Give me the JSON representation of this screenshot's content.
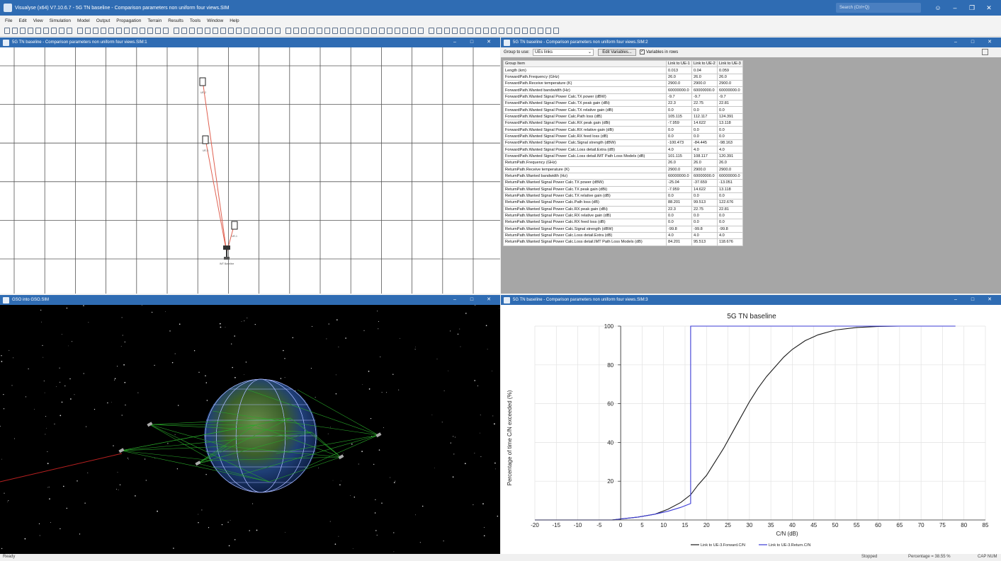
{
  "app": {
    "title": "Visualyse (x64) V7.10.6.7 - 5G TN baseline - Comparison parameters non uniform four views.SIM",
    "search_placeholder": "Search (Ctrl+Q)"
  },
  "menu": [
    "File",
    "Edit",
    "View",
    "Simulation",
    "Model",
    "Output",
    "Propagation",
    "Terrain",
    "Results",
    "Tools",
    "Window",
    "Help"
  ],
  "panes": {
    "map_title": "5G TN baseline - Comparison parameters non uniform four views.SIM:1",
    "table_title": "5G TN baseline - Comparison parameters non uniform four views.SIM:2",
    "globe_title": "GSO into GSO.SIM",
    "chart_title": "5G TN baseline - Comparison parameters non uniform four views.SIM:3"
  },
  "map": {
    "labels": [
      "UE-2",
      "UE-3",
      "UE-1",
      "IMT Baseline"
    ]
  },
  "table": {
    "group_label": "Group to use:",
    "group_value": "UEs links",
    "edit_button": "Edit Variables...",
    "rows_checkbox": "Variables in rows",
    "headers": [
      "Group Item",
      "Link to UE-1",
      "Link to UE-2",
      "Link to UE-3"
    ],
    "rows": [
      [
        "Length (km)",
        "0.013",
        "0.04",
        "0.059"
      ],
      [
        "ForwardPath.Frequency (GHz)",
        "26.0",
        "26.0",
        "26.0"
      ],
      [
        "ForwardPath.Receive temperature (K)",
        "2900.0",
        "2900.0",
        "2900.0"
      ],
      [
        "ForwardPath.Wanted bandwidth (Hz)",
        "60000000.0",
        "60000000.0",
        "60000000.0"
      ],
      [
        "ForwardPath.Wanted Signal Power Calc.TX power (dBW)",
        "-9.7",
        "-9.7",
        "-9.7"
      ],
      [
        "ForwardPath.Wanted Signal Power Calc.TX peak gain (dBi)",
        "22.3",
        "22.75",
        "22.81"
      ],
      [
        "ForwardPath.Wanted Signal Power Calc.TX relative gain (dB)",
        "0.0",
        "0.0",
        "0.0"
      ],
      [
        "ForwardPath.Wanted Signal Power Calc.Path loss (dB)",
        "105.115",
        "112.117",
        "124.391"
      ],
      [
        "ForwardPath.Wanted Signal Power Calc.RX peak gain (dBi)",
        "-7.959",
        "14.622",
        "13.118"
      ],
      [
        "ForwardPath.Wanted Signal Power Calc.RX relative gain (dB)",
        "0.0",
        "0.0",
        "0.0"
      ],
      [
        "ForwardPath.Wanted Signal Power Calc.RX feed loss (dB)",
        "0.0",
        "0.0",
        "0.0"
      ],
      [
        "ForwardPath.Wanted Signal Power Calc.Signal strength (dBW)",
        "-100.473",
        "-84.445",
        "-98.163"
      ],
      [
        "ForwardPath.Wanted Signal Power Calc.Loss detail.Extra (dB)",
        "4.0",
        "4.0",
        "4.0"
      ],
      [
        "ForwardPath.Wanted Signal Power Calc.Loss detail.IMT Path Loss Models (dB)",
        "101.115",
        "108.117",
        "120.391"
      ],
      [
        "ReturnPath.Frequency (GHz)",
        "26.0",
        "26.0",
        "26.0"
      ],
      [
        "ReturnPath.Receive temperature (K)",
        "2900.0",
        "2900.0",
        "2900.0"
      ],
      [
        "ReturnPath.Wanted bandwidth (Hz)",
        "60000000.0",
        "60000000.0",
        "60000000.0"
      ],
      [
        "ReturnPath.Wanted Signal Power Calc.TX power (dBW)",
        "-25.04",
        "-37.659",
        "-13.051"
      ],
      [
        "ReturnPath.Wanted Signal Power Calc.TX peak gain (dBi)",
        "-7.959",
        "14.622",
        "13.118"
      ],
      [
        "ReturnPath.Wanted Signal Power Calc.TX relative gain (dB)",
        "0.0",
        "0.0",
        "0.0"
      ],
      [
        "ReturnPath.Wanted Signal Power Calc.Path loss (dB)",
        "88.201",
        "99.513",
        "122.676"
      ],
      [
        "ReturnPath.Wanted Signal Power Calc.RX peak gain (dBi)",
        "22.3",
        "22.75",
        "22.81"
      ],
      [
        "ReturnPath.Wanted Signal Power Calc.RX relative gain (dB)",
        "0.0",
        "0.0",
        "0.0"
      ],
      [
        "ReturnPath.Wanted Signal Power Calc.RX feed loss (dB)",
        "0.0",
        "0.0",
        "0.0"
      ],
      [
        "ReturnPath.Wanted Signal Power Calc.Signal strength (dBW)",
        "-99.8",
        "-99.8",
        "-99.8"
      ],
      [
        "ReturnPath.Wanted Signal Power Calc.Loss detail.Extra (dB)",
        "4.0",
        "4.0",
        "4.0"
      ],
      [
        "ReturnPath.Wanted Signal Power Calc.Loss detail.IMT Path Loss Models (dB)",
        "84.201",
        "95.513",
        "118.676"
      ]
    ]
  },
  "status": {
    "left": "Ready",
    "state": "Stopped",
    "percentage": "Percentage = 38.55 %",
    "caps": "CAP NUM"
  },
  "chart_data": {
    "type": "line",
    "title": "5G TN baseline",
    "xlabel": "C/N (dB)",
    "ylabel": "Percentage of time C/N exceeded (%)",
    "xlim": [
      -20,
      85
    ],
    "ylim": [
      0,
      100
    ],
    "xticks": [
      -20,
      -15,
      -10,
      -5,
      0,
      5,
      10,
      15,
      20,
      25,
      30,
      35,
      40,
      45,
      50,
      55,
      60,
      65,
      70,
      75,
      80,
      85
    ],
    "yticks": [
      20,
      40,
      60,
      80,
      100
    ],
    "legend_position": "bottom",
    "series": [
      {
        "name": "Link to UE-3.Forward.C/N",
        "color": "#1a1a1a",
        "x": [
          -20,
          -2,
          0,
          4,
          8,
          11,
          14,
          16.3,
          18,
          20,
          22,
          24,
          26,
          28,
          30,
          32,
          34,
          36,
          38,
          40,
          43,
          46,
          50,
          55,
          60,
          65,
          70,
          75,
          78
        ],
        "y": [
          0,
          0,
          0.5,
          1.5,
          3,
          5.5,
          9,
          13,
          18,
          23,
          30,
          37,
          45,
          53,
          61,
          68,
          74,
          79,
          84,
          88,
          92.5,
          95.5,
          98,
          99.3,
          99.8,
          100,
          100,
          100,
          100
        ]
      },
      {
        "name": "Link to UE-3.Return.C/N",
        "color": "#3b3bd6",
        "x": [
          -20,
          -2,
          0,
          4,
          8,
          11,
          14,
          16.3,
          16.3,
          78
        ],
        "y": [
          0,
          0,
          0.5,
          1.5,
          3,
          4.5,
          6.5,
          8.5,
          100,
          100
        ]
      }
    ]
  }
}
